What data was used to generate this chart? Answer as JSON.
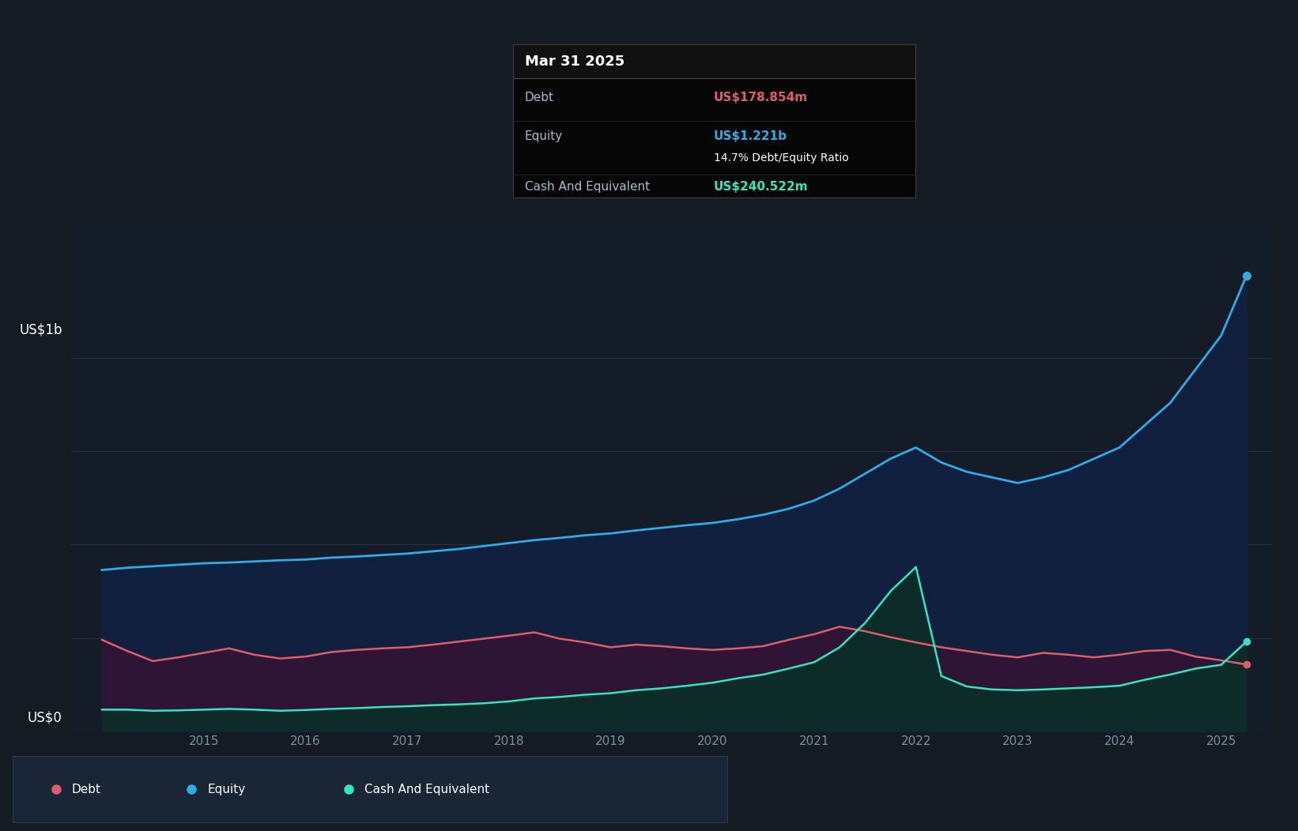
{
  "background_color": "#141B22",
  "plot_bg_color": "#131c27",
  "ylabel_1b": "US$1b",
  "ylabel_0": "US$0",
  "x_start_year": 2013.7,
  "x_end_year": 2025.5,
  "tooltip": {
    "date": "Mar 31 2025",
    "debt_label": "Debt",
    "debt_value": "US$178.854m",
    "equity_label": "Equity",
    "equity_value": "US$1.221b",
    "ratio": "14.7% Debt/Equity Ratio",
    "cash_label": "Cash And Equivalent",
    "cash_value": "US$240.522m"
  },
  "legend": [
    {
      "label": "Debt",
      "color": "#e05c6a"
    },
    {
      "label": "Equity",
      "color": "#29aee6"
    },
    {
      "label": "Cash And Equivalent",
      "color": "#2de8c0"
    }
  ],
  "equity_color": "#29aee6",
  "equity_fill": "#122040",
  "debt_color": "#e05c6a",
  "debt_fill": "#2e1535",
  "cash_color": "#2de8c0",
  "cash_fill": "#0d2b28",
  "grid_color": "#263340",
  "axis_label_color": "#7a8fa0",
  "tooltip_bg": "#060606",
  "tooltip_border": "#383838",
  "time_data": {
    "dates": [
      2014.0,
      2014.25,
      2014.5,
      2014.75,
      2015.0,
      2015.25,
      2015.5,
      2015.75,
      2016.0,
      2016.25,
      2016.5,
      2016.75,
      2017.0,
      2017.25,
      2017.5,
      2017.75,
      2018.0,
      2018.25,
      2018.5,
      2018.75,
      2019.0,
      2019.25,
      2019.5,
      2019.75,
      2020.0,
      2020.25,
      2020.5,
      2020.75,
      2021.0,
      2021.25,
      2021.5,
      2021.75,
      2022.0,
      2022.25,
      2022.5,
      2022.75,
      2023.0,
      2023.25,
      2023.5,
      2023.75,
      2024.0,
      2024.25,
      2024.5,
      2024.75,
      2025.0,
      2025.25
    ],
    "equity_m": [
      432,
      438,
      442,
      446,
      450,
      452,
      455,
      458,
      460,
      465,
      468,
      472,
      476,
      482,
      488,
      496,
      504,
      512,
      518,
      525,
      530,
      538,
      545,
      552,
      558,
      568,
      580,
      596,
      618,
      650,
      690,
      730,
      760,
      720,
      695,
      680,
      665,
      680,
      700,
      730,
      760,
      820,
      880,
      970,
      1060,
      1221
    ],
    "debt_m": [
      245,
      215,
      188,
      198,
      210,
      222,
      205,
      195,
      200,
      212,
      218,
      222,
      225,
      232,
      240,
      248,
      256,
      265,
      248,
      238,
      225,
      232,
      228,
      222,
      218,
      222,
      228,
      245,
      260,
      280,
      268,
      252,
      238,
      225,
      215,
      205,
      198,
      210,
      205,
      198,
      205,
      215,
      218,
      200,
      190,
      178.854
    ],
    "cash_m": [
      58,
      58,
      55,
      56,
      58,
      60,
      58,
      55,
      57,
      60,
      62,
      65,
      67,
      70,
      72,
      75,
      80,
      88,
      92,
      98,
      102,
      110,
      115,
      122,
      130,
      142,
      152,
      168,
      185,
      225,
      290,
      375,
      440,
      148,
      120,
      112,
      110,
      112,
      115,
      118,
      122,
      138,
      152,
      168,
      178,
      240.522
    ]
  }
}
